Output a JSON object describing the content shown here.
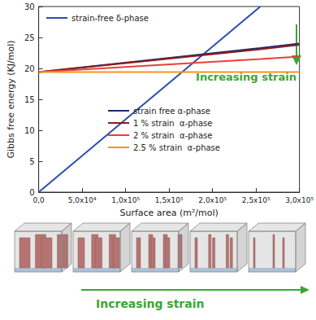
{
  "chart_data": {
    "type": "line",
    "x_label": "Surface area (m²/mol)",
    "y_label": "Gibbs free energy (KJ/mol)",
    "x": [
      0,
      255000,
      300000
    ],
    "series": [
      {
        "name": "strain-free δ-phase",
        "color": "#2a4db0",
        "values": [
          0,
          30,
          null
        ]
      },
      {
        "name": "strain free α-phase",
        "color": "#1b2a6e",
        "values": [
          19.4,
          23.3,
          24.0
        ]
      },
      {
        "name": "1 % strain  α-phase",
        "color": "#8b1c1c",
        "values": [
          19.4,
          23.1,
          23.8
        ]
      },
      {
        "name": "2 % strain  α-phase",
        "color": "#e8403a",
        "values": [
          19.4,
          21.5,
          21.9
        ]
      },
      {
        "name": "2.5 % strain  α-phase",
        "color": "#f7941d",
        "values": [
          19.4,
          19.4,
          19.4
        ]
      }
    ],
    "xlim": [
      0,
      300000
    ],
    "xticks": [
      {
        "value": 0,
        "label": "0,0"
      },
      {
        "value": 50000,
        "label": "5,0x10⁴"
      },
      {
        "value": 100000,
        "label": "1,0x10⁵"
      },
      {
        "value": 150000,
        "label": "1,5x10⁵"
      },
      {
        "value": 200000,
        "label": "2,0x10⁵"
      },
      {
        "value": 250000,
        "label": "2,5x10⁵"
      },
      {
        "value": 300000,
        "label": "3,0x10⁵"
      }
    ],
    "ylim": [
      0,
      30
    ],
    "yticks": [
      0,
      5,
      10,
      15,
      20,
      25,
      30
    ],
    "grid": false,
    "legend": "left",
    "annotations": [
      "Increasing strain",
      "Increasing strain"
    ]
  }
}
